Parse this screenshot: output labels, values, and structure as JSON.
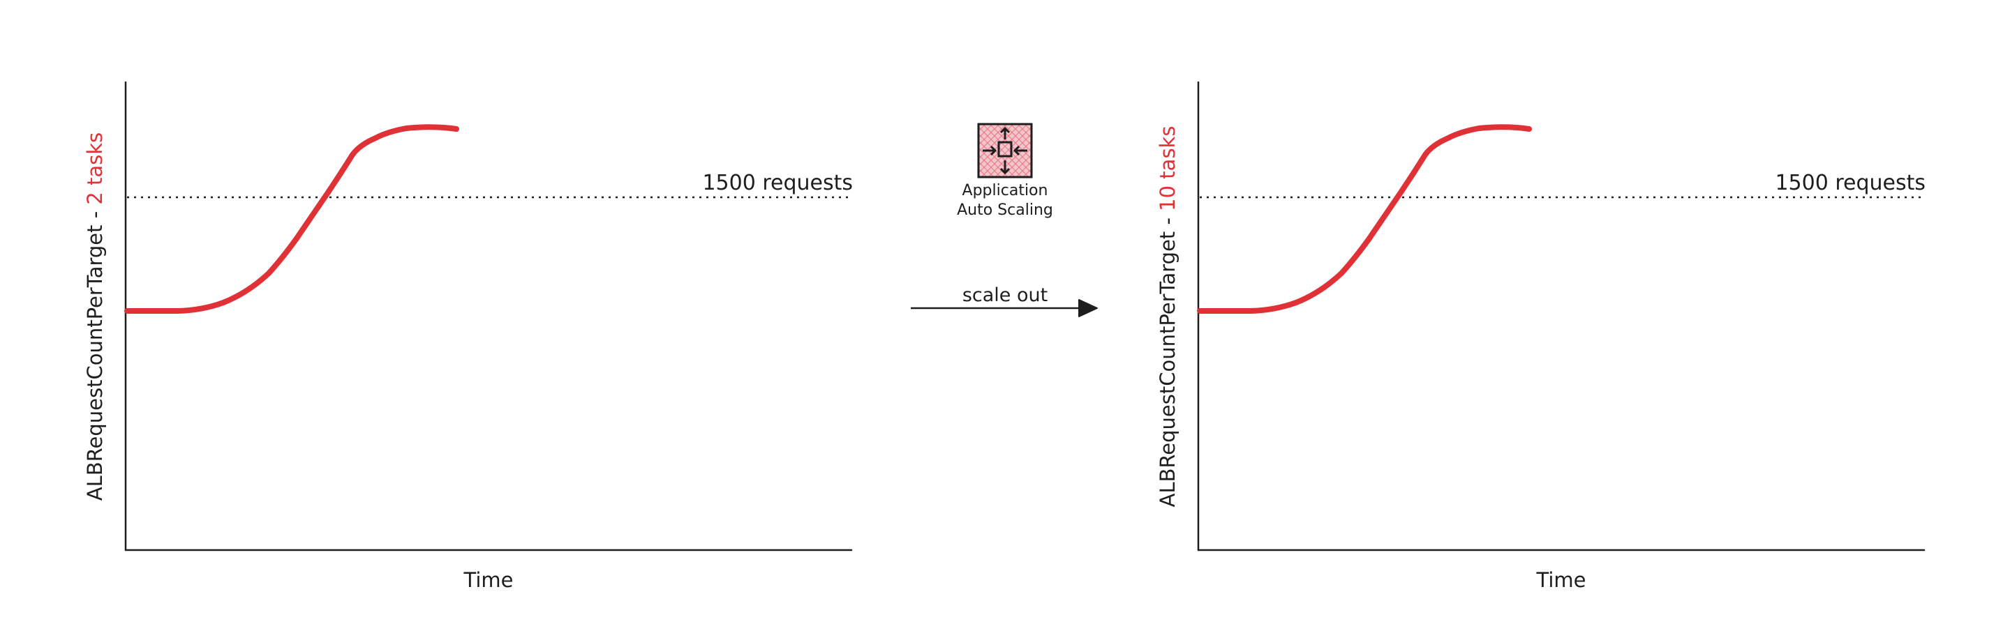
{
  "colors": {
    "ink": "#1e1e1e",
    "accent": "#e03137",
    "icon_fill": "#f3c6cc"
  },
  "left_chart": {
    "ylabel_prefix": "ALBRequestCountPerTarget - ",
    "ylabel_tasks": "2 tasks",
    "xlabel": "Time",
    "threshold_label": "1500 requests"
  },
  "center": {
    "icon": "application-auto-scaling-icon",
    "service_label_line1": "Application",
    "service_label_line2": "Auto Scaling",
    "arrow_label": "scale out"
  },
  "right_chart": {
    "ylabel_prefix": "ALBRequestCountPerTarget - ",
    "ylabel_tasks": "10 tasks",
    "xlabel": "Time",
    "threshold_label": "1500 requests"
  }
}
